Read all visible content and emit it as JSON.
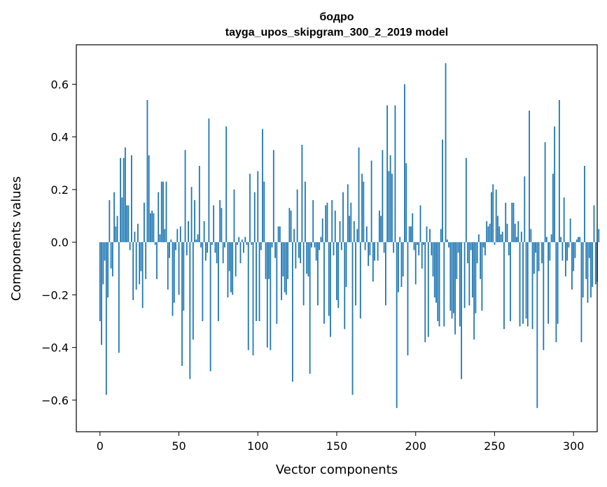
{
  "chart_data": {
    "type": "bar",
    "title": "бодро",
    "subtitle": "tayga_upos_skipgram_300_2_2019 model",
    "xlabel": "Vector components",
    "ylabel": "Components values",
    "xlim": [
      -15,
      315
    ],
    "ylim": [
      -0.72,
      0.75
    ],
    "xticks": [
      0,
      50,
      100,
      150,
      200,
      250,
      300
    ],
    "xtick_labels": [
      "0",
      "50",
      "100",
      "150",
      "200",
      "250",
      "300"
    ],
    "yticks": [
      -0.6,
      -0.4,
      -0.2,
      0.0,
      0.2,
      0.4,
      0.6
    ],
    "ytick_labels": [
      "−0.6",
      "−0.4",
      "−0.2",
      "0.0",
      "0.2",
      "0.4",
      "0.6"
    ],
    "grid": false,
    "bar_color": "#1f77b4",
    "values": [
      -0.3,
      -0.39,
      -0.16,
      -0.07,
      -0.58,
      -0.21,
      0.16,
      -0.1,
      -0.13,
      0.19,
      0.06,
      0.1,
      -0.42,
      0.32,
      0.17,
      0.32,
      0.36,
      0.14,
      0.14,
      -0.03,
      0.33,
      -0.22,
      0.04,
      -0.18,
      0.07,
      -0.16,
      -0.11,
      -0.25,
      0.15,
      -0.14,
      0.54,
      0.33,
      0.11,
      0.12,
      0.11,
      -0.01,
      -0.14,
      0.19,
      0.03,
      0.23,
      0.23,
      0.05,
      0.23,
      -0.18,
      -0.06,
      0.01,
      -0.28,
      -0.23,
      -0.03,
      0.05,
      -0.2,
      0.06,
      -0.47,
      -0.26,
      0.35,
      -0.05,
      0.08,
      -0.52,
      0.21,
      -0.37,
      0.16,
      0.01,
      0.03,
      0.29,
      -0.02,
      -0.3,
      0.08,
      -0.07,
      -0.04,
      0.47,
      -0.49,
      -0.01,
      0.14,
      -0.04,
      -0.08,
      -0.3,
      0.16,
      0.13,
      -0.08,
      -0.02,
      0.44,
      -0.21,
      -0.11,
      -0.19,
      -0.2,
      0.2,
      -0.13,
      -0.01,
      0.02,
      -0.08,
      0.01,
      -0.04,
      0.02,
      -0.01,
      -0.41,
      0.26,
      -0.01,
      -0.43,
      0.19,
      -0.3,
      0.27,
      -0.3,
      -0.03,
      0.43,
      0.23,
      -0.14,
      -0.4,
      -0.14,
      -0.41,
      -0.02,
      0.35,
      -0.06,
      -0.31,
      0.06,
      0.06,
      -0.22,
      -0.13,
      -0.19,
      -0.2,
      -0.14,
      0.13,
      0.12,
      -0.53,
      0.05,
      -0.1,
      0.2,
      -0.06,
      -0.08,
      0.37,
      -0.24,
      0.23,
      -0.12,
      -0.13,
      -0.5,
      -0.02,
      0.16,
      -0.02,
      -0.07,
      -0.24,
      -0.03,
      0.02,
      0.09,
      -0.31,
      0.14,
      0.15,
      -0.28,
      -0.36,
      0.16,
      -0.05,
      0.12,
      -0.22,
      -0.25,
      0.08,
      -0.03,
      0.19,
      -0.33,
      -0.17,
      0.22,
      0.1,
      0.15,
      -0.58,
      0.08,
      -0.24,
      0.05,
      0.36,
      -0.29,
      0.26,
      0.23,
      -0.03,
      0.06,
      -0.09,
      -0.05,
      0.31,
      -0.15,
      -0.07,
      0.0,
      -0.07,
      0.12,
      0.1,
      0.35,
      -0.04,
      -0.24,
      0.52,
      0.27,
      0.33,
      0.26,
      -0.04,
      0.52,
      -0.63,
      -0.19,
      0.02,
      -0.17,
      -0.13,
      0.6,
      0.3,
      -0.43,
      0.06,
      0.06,
      0.11,
      -0.03,
      -0.16,
      -0.01,
      -0.05,
      0.14,
      -0.1,
      -0.01,
      -0.38,
      0.06,
      -0.36,
      0.05,
      -0.05,
      -0.13,
      -0.21,
      -0.23,
      -0.3,
      -0.32,
      0.05,
      0.39,
      -0.32,
      0.68,
      0.01,
      -0.02,
      -0.26,
      -0.29,
      -0.27,
      -0.35,
      -0.14,
      -0.04,
      -0.32,
      -0.52,
      0.0,
      -0.25,
      0.32,
      -0.08,
      -0.24,
      -0.03,
      -0.21,
      -0.37,
      -0.27,
      -0.08,
      0.03,
      -0.14,
      -0.26,
      -0.02,
      -0.05,
      0.08,
      0.06,
      0.07,
      0.19,
      0.22,
      -0.01,
      0.2,
      0.1,
      0.06,
      0.03,
      0.04,
      -0.33,
      0.15,
      0.07,
      -0.05,
      -0.3,
      0.15,
      0.15,
      0.07,
      0.02,
      0.08,
      -0.32,
      0.04,
      -0.31,
      0.25,
      -0.29,
      -0.32,
      0.5,
      0.05,
      -0.33,
      -0.12,
      -0.04,
      -0.63,
      -0.11,
      0.0,
      -0.08,
      -0.41,
      0.38,
      0.02,
      -0.31,
      -0.07,
      0.03,
      0.26,
      0.44,
      -0.38,
      -0.31,
      0.54,
      0.02,
      -0.07,
      0.17,
      -0.13,
      -0.07,
      -0.02,
      0.09,
      -0.18,
      -0.11,
      -0.06,
      0.01,
      0.02,
      0.02,
      -0.38,
      -0.21,
      0.29,
      -0.14,
      -0.23,
      -0.06,
      -0.21,
      -0.17,
      0.14,
      -0.16,
      -0.15,
      0.05
    ]
  }
}
